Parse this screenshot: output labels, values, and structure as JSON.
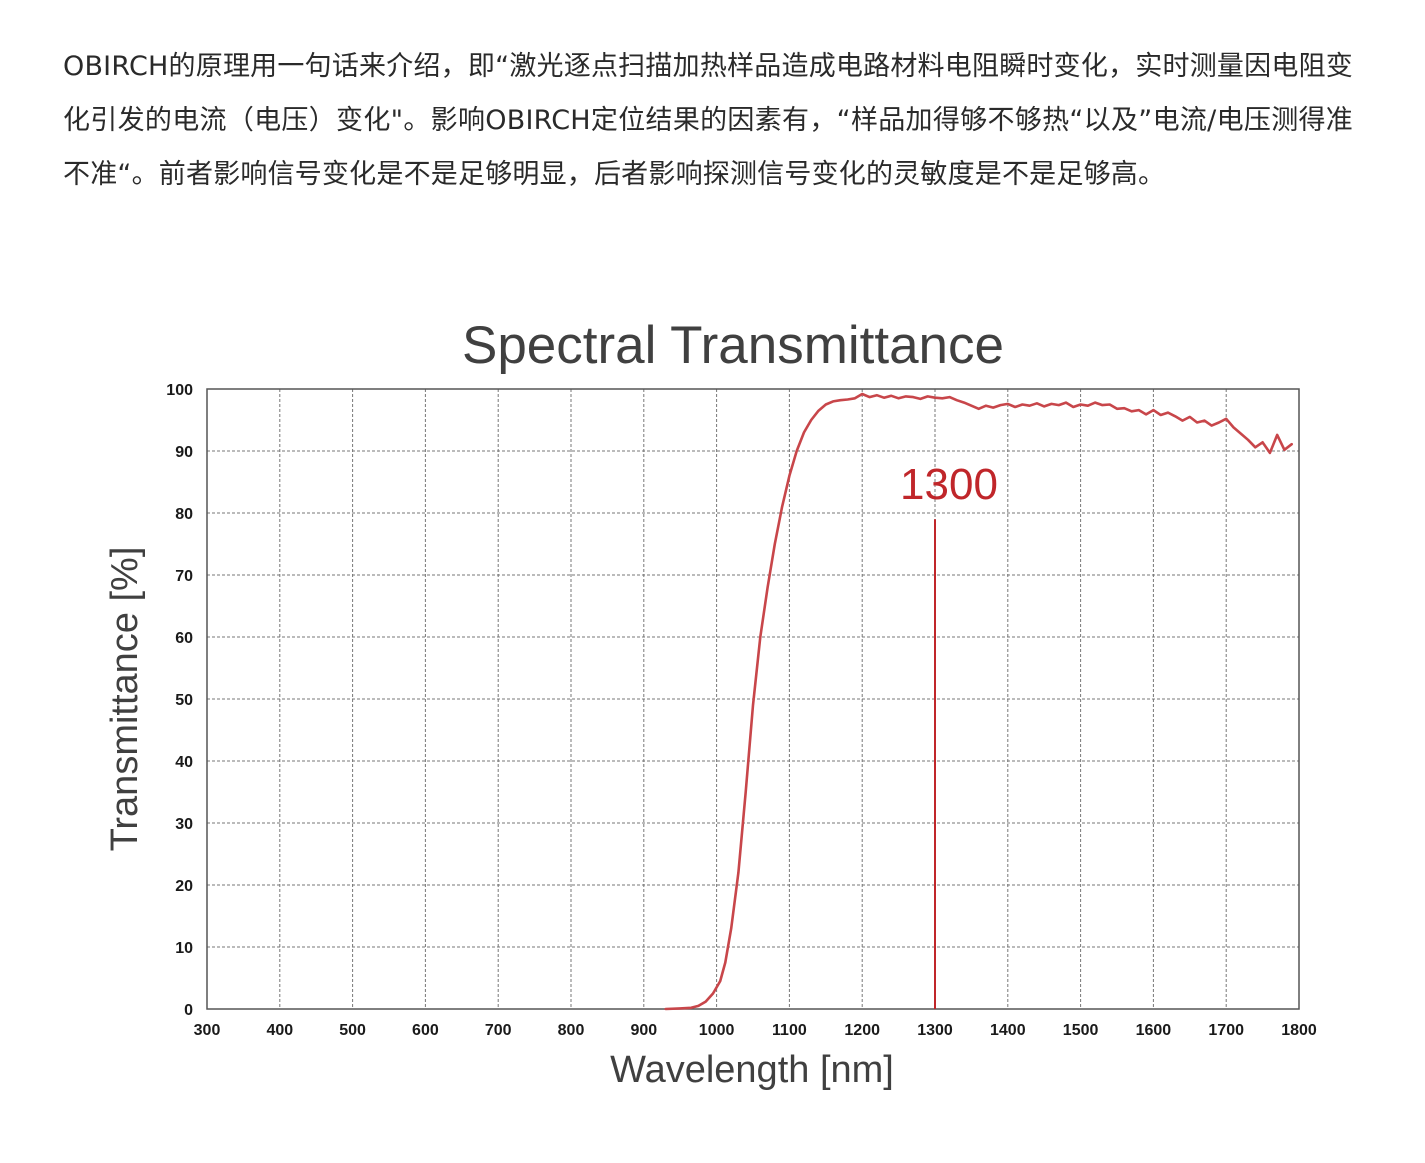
{
  "article": {
    "paragraph": "OBIRCH的原理用一句话来介绍，即“激光逐点扫描加热样品造成电路材料电阻瞬时变化，实时测量因电阻变化引发的电流（电压）变化\"。影响OBIRCH定位结果的因素有，“样品加得够不够热“以及”电流/电压测得准不准“。前者影响信号变化是不是足够明显，后者影响探测信号变化的灵敏度是不是足够高。"
  },
  "colors": {
    "curve": "#c8464a",
    "annotation": "#c0262a",
    "grid": "#777777",
    "frame": "#555555",
    "text": "#2a2a2a"
  },
  "chart_data": {
    "type": "line",
    "title": "Spectral Transmittance",
    "xlabel": "Wavelength [nm]",
    "ylabel": "Transmittance [%]",
    "xlim": [
      300,
      1800
    ],
    "ylim": [
      0,
      100
    ],
    "grid": true,
    "grid_style": "dashed",
    "x_ticks": [
      "300",
      "400",
      "500",
      "600",
      "700",
      "800",
      "900",
      "1000",
      "1100",
      "1200",
      "1300",
      "1400",
      "1500",
      "1600",
      "1700",
      "1800"
    ],
    "y_ticks": [
      "0",
      "10",
      "20",
      "30",
      "40",
      "50",
      "60",
      "70",
      "80",
      "90",
      "100"
    ],
    "annotation": {
      "label": "1300",
      "x": 1300,
      "y_top": 79
    },
    "series": [
      {
        "x": [
          930,
          950,
          965,
          975,
          985,
          995,
          1005,
          1012,
          1020,
          1030,
          1040,
          1050,
          1060,
          1070,
          1080,
          1090,
          1100,
          1110,
          1120,
          1130,
          1140,
          1150,
          1160,
          1170,
          1180,
          1190,
          1200,
          1210,
          1220,
          1230,
          1240,
          1250,
          1260,
          1270,
          1280,
          1290,
          1300,
          1310,
          1320,
          1330,
          1340,
          1350,
          1360,
          1370,
          1380,
          1390,
          1400,
          1410,
          1420,
          1430,
          1440,
          1450,
          1460,
          1470,
          1480,
          1490,
          1500,
          1510,
          1520,
          1530,
          1540,
          1550,
          1560,
          1570,
          1580,
          1590,
          1600,
          1610,
          1620,
          1630,
          1640,
          1650,
          1660,
          1670,
          1680,
          1690,
          1700,
          1710,
          1720,
          1730,
          1740,
          1750,
          1760,
          1770,
          1780,
          1790
        ],
        "y": [
          0,
          0.1,
          0.2,
          0.5,
          1.2,
          2.5,
          4.5,
          7.5,
          13,
          22,
          35,
          49,
          60,
          68,
          75,
          81,
          86,
          90,
          93,
          95,
          96.5,
          97.5,
          98,
          98.2,
          98.3,
          98.5,
          99.2,
          98.7,
          99,
          98.6,
          98.9,
          98.5,
          98.8,
          98.7,
          98.4,
          98.8,
          98.6,
          98.5,
          98.7,
          98.2,
          97.8,
          97.3,
          96.8,
          97.3,
          97,
          97.4,
          97.6,
          97.1,
          97.5,
          97.3,
          97.7,
          97.2,
          97.6,
          97.4,
          97.8,
          97.1,
          97.5,
          97.3,
          97.8,
          97.4,
          97.5,
          96.8,
          96.9,
          96.4,
          96.6,
          95.9,
          96.6,
          95.8,
          96.2,
          95.6,
          94.9,
          95.5,
          94.6,
          94.9,
          94.1,
          94.6,
          95.2,
          93.8,
          92.8,
          91.8,
          90.6,
          91.4,
          89.7,
          92.6,
          90.2,
          91.1
        ]
      }
    ]
  }
}
